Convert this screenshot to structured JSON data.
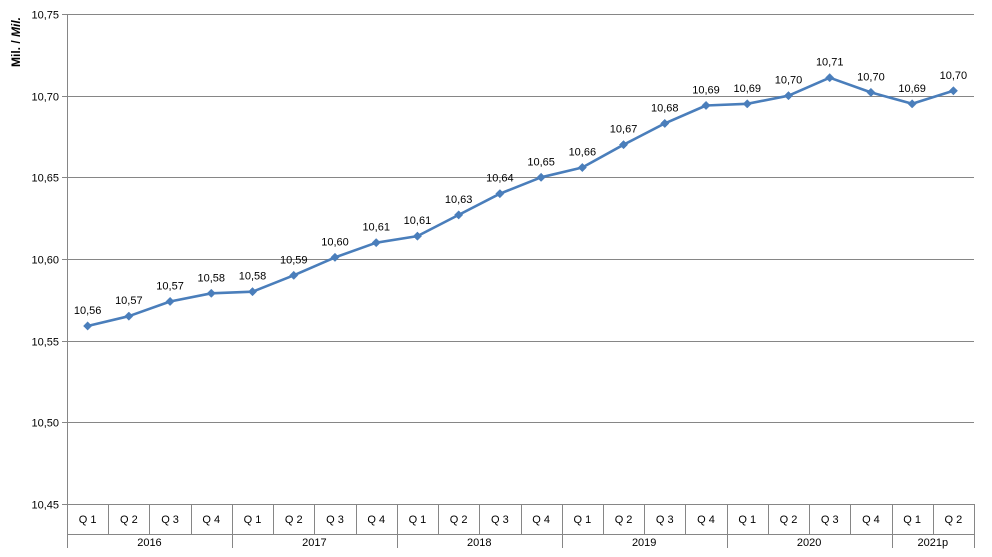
{
  "chart_data": {
    "type": "line",
    "title": "",
    "ylabel": "Mil. / ",
    "ylabel_italic": "Mil.",
    "xlabel": "",
    "ylim": [
      10.45,
      10.75
    ],
    "yticks": [
      "10,45",
      "10,50",
      "10,55",
      "10,60",
      "10,65",
      "10,70",
      "10,75"
    ],
    "grid": true,
    "legend": "none",
    "quarters": [
      "Q 1",
      "Q 2",
      "Q 3",
      "Q 4",
      "Q 1",
      "Q 2",
      "Q 3",
      "Q 4",
      "Q 1",
      "Q 2",
      "Q 3",
      "Q 4",
      "Q 1",
      "Q 2",
      "Q 3",
      "Q 4",
      "Q 1",
      "Q 2",
      "Q 3",
      "Q 4",
      "Q 1",
      "Q 2"
    ],
    "years": [
      {
        "label": "2016",
        "span": 4
      },
      {
        "label": "2017",
        "span": 4
      },
      {
        "label": "2018",
        "span": 4
      },
      {
        "label": "2019",
        "span": 4
      },
      {
        "label": "2020",
        "span": 4
      },
      {
        "label": "2021p",
        "span": 2
      }
    ],
    "values": [
      10.559,
      10.565,
      10.574,
      10.579,
      10.58,
      10.59,
      10.601,
      10.61,
      10.614,
      10.627,
      10.64,
      10.65,
      10.656,
      10.67,
      10.683,
      10.694,
      10.695,
      10.7,
      10.711,
      10.702,
      10.695,
      10.703
    ],
    "data_labels": [
      "10,56",
      "10,57",
      "10,57",
      "10,58",
      "10,58",
      "10,59",
      "10,60",
      "10,61",
      "10,61",
      "10,63",
      "10,64",
      "10,65",
      "10,66",
      "10,67",
      "10,68",
      "10,69",
      "10,69",
      "10,70",
      "10,71",
      "10,70",
      "10,69",
      "10,70"
    ],
    "series_color": "#4a7ebb",
    "grid_color": "#868686",
    "axis_color": "#868686"
  }
}
